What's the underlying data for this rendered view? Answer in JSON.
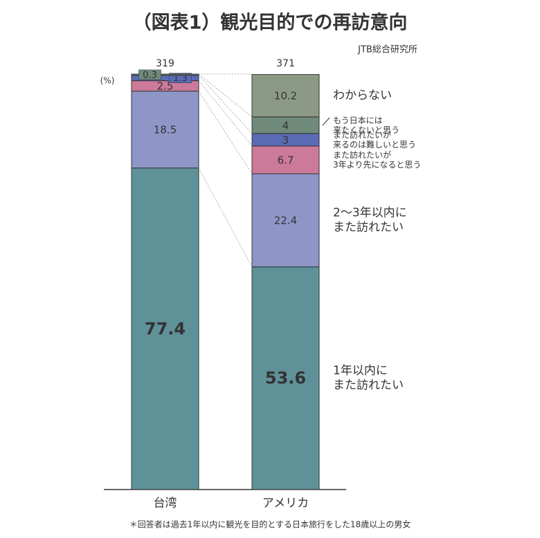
{
  "chart_data": {
    "type": "stacked-bar",
    "title": "（図表1）観光目的での再訪意向",
    "source": "JTB総合研究所",
    "unit": "(%)",
    "footnote": "＊回答者は過去1年以内に観光を目的とする日本旅行をした18歳以上の男女",
    "categories": [
      "台湾",
      "アメリカ"
    ],
    "n": [
      319,
      371
    ],
    "ylim": [
      0,
      100
    ],
    "series": [
      {
        "name": "1年以内に\nまた訪れたい",
        "color": "#5f9199",
        "values": [
          77.4,
          53.6
        ]
      },
      {
        "name": "2～3年以内に\nまた訪れたい",
        "color": "#8e96c8",
        "values": [
          18.5,
          22.4
        ]
      },
      {
        "name": "また訪れたいが\n3年より先になると思う",
        "color": "#cc7a9a",
        "values": [
          2.5,
          6.7
        ]
      },
      {
        "name": "また訪れたいが\n来るのは難しいと思う",
        "color": "#5a6bb5",
        "values": [
          1.3,
          3.0
        ]
      },
      {
        "name": "もう日本には\n来たくないと思う",
        "color": "#6f8a7a",
        "values": [
          0.3,
          4.0
        ]
      },
      {
        "name": "わからない",
        "color": "#8c9a85",
        "values": [
          null,
          10.2
        ]
      }
    ]
  }
}
